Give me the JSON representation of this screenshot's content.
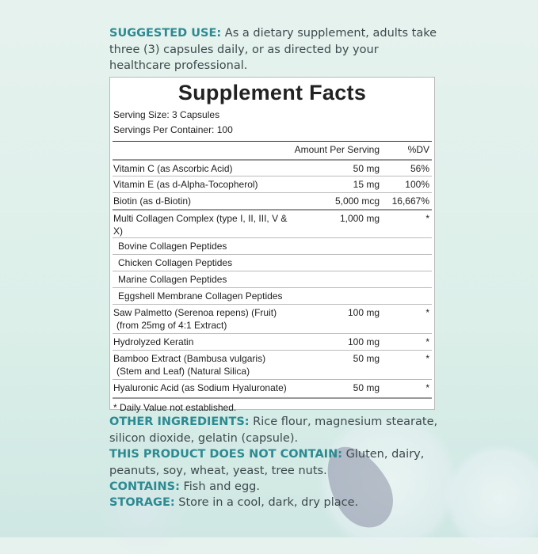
{
  "suggested_use": {
    "label": "SUGGESTED USE:",
    "text": " As a dietary supplement, adults take three (3) capsules daily, or as directed by your healthcare professional."
  },
  "facts": {
    "title": "Supplement Facts",
    "serving_size": "Serving Size: 3 Capsules",
    "servings_per_container": "Servings Per Container: 100",
    "col_amount": "Amount Per Serving",
    "col_dv": "%DV",
    "rows": [
      {
        "name": "Vitamin C (as Ascorbic Acid)",
        "amount": "50 mg",
        "dv": "56%"
      },
      {
        "name": "Vitamin E (as d-Alpha-Tocopherol)",
        "amount": "15 mg",
        "dv": "100%"
      },
      {
        "name": "Biotin (as d-Biotin)",
        "amount": "5,000 mcg",
        "dv": "16,667%"
      },
      {
        "name": "Multi Collagen Complex (type I, II, III, V & X)",
        "amount": "1,000 mg",
        "dv": "*"
      },
      {
        "name": "Bovine Collagen Peptides",
        "amount": "",
        "dv": ""
      },
      {
        "name": "Chicken Collagen Peptides",
        "amount": "",
        "dv": ""
      },
      {
        "name": "Marine Collagen Peptides",
        "amount": "",
        "dv": ""
      },
      {
        "name": "Eggshell Membrane Collagen Peptides",
        "amount": "",
        "dv": ""
      },
      {
        "name": "Saw Palmetto (Serenoa repens) (Fruit)",
        "name2": "(from 25mg of 4:1 Extract)",
        "amount": "100 mg",
        "dv": "*"
      },
      {
        "name": "Hydrolyzed Keratin",
        "amount": "100 mg",
        "dv": "*"
      },
      {
        "name": "Bamboo Extract (Bambusa vulgaris)",
        "name2": "(Stem and Leaf) (Natural Silica)",
        "amount": "50 mg",
        "dv": "*"
      },
      {
        "name": "Hyaluronic Acid (as Sodium Hyaluronate)",
        "amount": "50 mg",
        "dv": "*"
      }
    ],
    "footnote": "* Daily Value not established."
  },
  "other_ingredients": {
    "label": "OTHER INGREDIENTS:",
    "text": " Rice flour, magnesium stearate, silicon dioxide, gelatin (capsule)."
  },
  "does_not_contain": {
    "label": "THIS PRODUCT DOES NOT CONTAIN:",
    "text": " Gluten, dairy, peanuts, soy, wheat, yeast, tree nuts."
  },
  "contains": {
    "label": "CONTAINS:",
    "text": " Fish and egg."
  },
  "storage": {
    "label": "STORAGE:",
    "text": " Store in a cool, dark, dry place."
  },
  "colors": {
    "accent": "#2c8a92",
    "background": "#dcefe9"
  }
}
